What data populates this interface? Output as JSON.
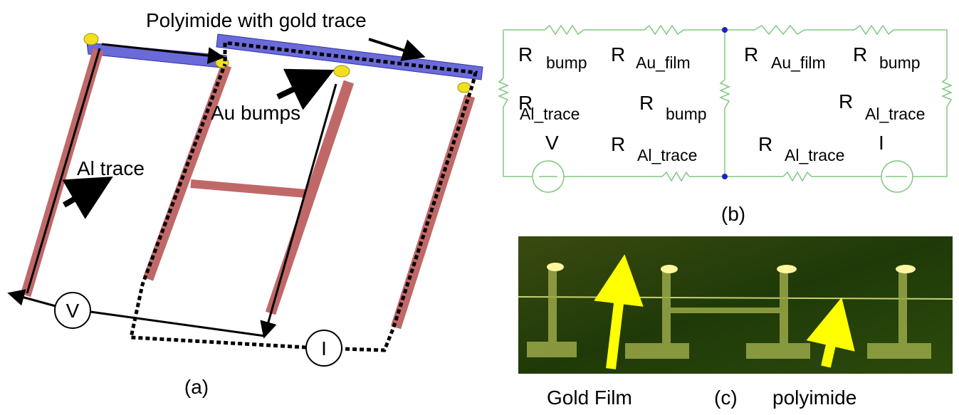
{
  "panel_a": {
    "title": "Polyimide with gold trace",
    "labels": [
      "Au bumps",
      "Al trace"
    ],
    "meter_v": "V",
    "meter_i": "I",
    "caption": "(a)"
  },
  "panel_b": {
    "resistors": [
      {
        "symbol": "R",
        "sub": "bump"
      },
      {
        "symbol": "R",
        "sub": "Au_film"
      },
      {
        "symbol": "R",
        "sub": "Au_film"
      },
      {
        "symbol": "R",
        "sub": "bump"
      },
      {
        "symbol": "R",
        "sub": "Al_trace"
      },
      {
        "symbol": "R",
        "sub": "bump"
      },
      {
        "symbol": "R",
        "sub": "Al_trace"
      },
      {
        "symbol": "R",
        "sub": "Al_trace"
      },
      {
        "symbol": "R",
        "sub": "Al_trace"
      }
    ],
    "source_v": "V",
    "source_i": "I",
    "caption": "(b)"
  },
  "panel_c": {
    "labels": [
      "Gold Film",
      "polyimide"
    ],
    "caption": "(c)"
  }
}
